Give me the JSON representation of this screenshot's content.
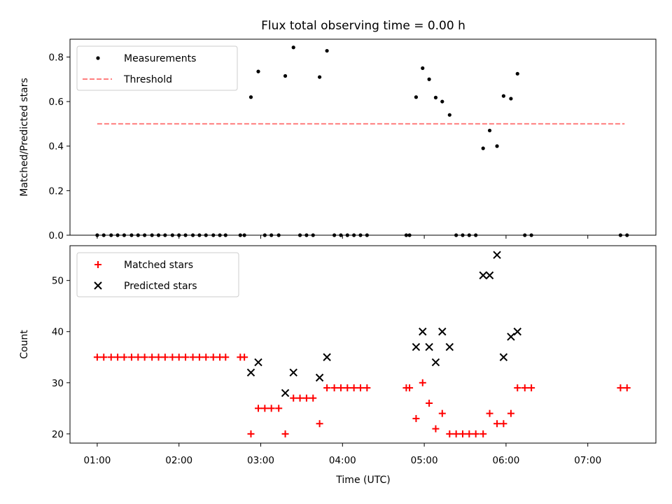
{
  "title": "Flux total observing time = 0.00 h",
  "x_axis": {
    "label": "Time (UTC)",
    "range_hours": [
      0.667,
      7.833
    ],
    "ticks": [
      {
        "v": 1,
        "label": "01:00"
      },
      {
        "v": 2,
        "label": "02:00"
      },
      {
        "v": 3,
        "label": "03:00"
      },
      {
        "v": 4,
        "label": "04:00"
      },
      {
        "v": 5,
        "label": "05:00"
      },
      {
        "v": 6,
        "label": "06:00"
      },
      {
        "v": 7,
        "label": "07:00"
      }
    ]
  },
  "chart_data": [
    {
      "type": "scatter",
      "ylabel": "Matched/Predicted stars",
      "ylim": [
        0,
        0.88
      ],
      "yticks": [
        {
          "v": 0,
          "label": "0.0"
        },
        {
          "v": 0.2,
          "label": "0.2"
        },
        {
          "v": 0.4,
          "label": "0.4"
        },
        {
          "v": 0.6,
          "label": "0.6"
        },
        {
          "v": 0.8,
          "label": "0.8"
        }
      ],
      "legend_position": "upper-left",
      "series": [
        {
          "name": "Measurements",
          "marker": "dot",
          "color": "#000000",
          "points": [
            [
              1.0,
              0
            ],
            [
              1.08,
              0
            ],
            [
              1.17,
              0
            ],
            [
              1.25,
              0
            ],
            [
              1.33,
              0
            ],
            [
              1.42,
              0
            ],
            [
              1.5,
              0
            ],
            [
              1.58,
              0
            ],
            [
              1.67,
              0
            ],
            [
              1.75,
              0
            ],
            [
              1.83,
              0
            ],
            [
              1.92,
              0
            ],
            [
              2.0,
              0
            ],
            [
              2.08,
              0
            ],
            [
              2.17,
              0
            ],
            [
              2.25,
              0
            ],
            [
              2.33,
              0
            ],
            [
              2.42,
              0
            ],
            [
              2.5,
              0
            ],
            [
              2.57,
              0
            ],
            [
              2.75,
              0
            ],
            [
              2.8,
              0
            ],
            [
              2.88,
              0.62
            ],
            [
              2.97,
              0.735
            ],
            [
              3.05,
              0
            ],
            [
              3.13,
              0
            ],
            [
              3.22,
              0
            ],
            [
              3.3,
              0.715
            ],
            [
              3.4,
              0.843
            ],
            [
              3.48,
              0
            ],
            [
              3.56,
              0
            ],
            [
              3.64,
              0
            ],
            [
              3.72,
              0.71
            ],
            [
              3.81,
              0.828
            ],
            [
              3.9,
              0
            ],
            [
              3.98,
              0
            ],
            [
              4.06,
              0
            ],
            [
              4.14,
              0
            ],
            [
              4.22,
              0
            ],
            [
              4.3,
              0
            ],
            [
              4.78,
              0
            ],
            [
              4.82,
              0
            ],
            [
              4.9,
              0.62
            ],
            [
              4.98,
              0.75
            ],
            [
              5.06,
              0.7
            ],
            [
              5.14,
              0.618
            ],
            [
              5.22,
              0.6
            ],
            [
              5.31,
              0.54
            ],
            [
              5.39,
              0
            ],
            [
              5.47,
              0
            ],
            [
              5.55,
              0
            ],
            [
              5.63,
              0
            ],
            [
              5.72,
              0.39
            ],
            [
              5.8,
              0.47
            ],
            [
              5.89,
              0.4
            ],
            [
              5.97,
              0.625
            ],
            [
              6.06,
              0.613
            ],
            [
              6.14,
              0.725
            ],
            [
              6.23,
              0
            ],
            [
              6.31,
              0
            ],
            [
              7.4,
              0
            ],
            [
              7.48,
              0
            ]
          ]
        },
        {
          "name": "Threshold",
          "type": "line",
          "style": "dashed",
          "color": "#ff7f7f",
          "x": [
            1.0,
            7.45
          ],
          "y": [
            0.5,
            0.5
          ]
        }
      ]
    },
    {
      "type": "scatter",
      "ylabel": "Count",
      "ylim": [
        18.2,
        56.8
      ],
      "yticks": [
        {
          "v": 20,
          "label": "20"
        },
        {
          "v": 30,
          "label": "30"
        },
        {
          "v": 40,
          "label": "40"
        },
        {
          "v": 50,
          "label": "50"
        }
      ],
      "legend_position": "upper-left",
      "series": [
        {
          "name": "Matched stars",
          "marker": "plus",
          "color": "#ff0000",
          "points": [
            [
              1.0,
              35
            ],
            [
              1.08,
              35
            ],
            [
              1.17,
              35
            ],
            [
              1.25,
              35
            ],
            [
              1.33,
              35
            ],
            [
              1.42,
              35
            ],
            [
              1.5,
              35
            ],
            [
              1.58,
              35
            ],
            [
              1.67,
              35
            ],
            [
              1.75,
              35
            ],
            [
              1.83,
              35
            ],
            [
              1.92,
              35
            ],
            [
              2.0,
              35
            ],
            [
              2.08,
              35
            ],
            [
              2.17,
              35
            ],
            [
              2.25,
              35
            ],
            [
              2.33,
              35
            ],
            [
              2.42,
              35
            ],
            [
              2.5,
              35
            ],
            [
              2.57,
              35
            ],
            [
              2.75,
              35
            ],
            [
              2.8,
              35
            ],
            [
              2.88,
              20
            ],
            [
              2.97,
              25
            ],
            [
              3.05,
              25
            ],
            [
              3.13,
              25
            ],
            [
              3.22,
              25
            ],
            [
              3.3,
              20
            ],
            [
              3.4,
              27
            ],
            [
              3.48,
              27
            ],
            [
              3.56,
              27
            ],
            [
              3.64,
              27
            ],
            [
              3.72,
              22
            ],
            [
              3.81,
              29
            ],
            [
              3.9,
              29
            ],
            [
              3.98,
              29
            ],
            [
              4.06,
              29
            ],
            [
              4.14,
              29
            ],
            [
              4.22,
              29
            ],
            [
              4.3,
              29
            ],
            [
              4.78,
              29
            ],
            [
              4.82,
              29
            ],
            [
              4.9,
              23
            ],
            [
              4.98,
              30
            ],
            [
              5.06,
              26
            ],
            [
              5.14,
              21
            ],
            [
              5.22,
              24
            ],
            [
              5.31,
              20
            ],
            [
              5.39,
              20
            ],
            [
              5.47,
              20
            ],
            [
              5.55,
              20
            ],
            [
              5.63,
              20
            ],
            [
              5.72,
              20
            ],
            [
              5.8,
              24
            ],
            [
              5.89,
              22
            ],
            [
              5.97,
              22
            ],
            [
              6.06,
              24
            ],
            [
              6.14,
              29
            ],
            [
              6.23,
              29
            ],
            [
              6.31,
              29
            ],
            [
              7.4,
              29
            ],
            [
              7.48,
              29
            ]
          ]
        },
        {
          "name": "Predicted stars",
          "marker": "x",
          "color": "#000000",
          "points": [
            [
              2.88,
              32
            ],
            [
              2.97,
              34
            ],
            [
              3.3,
              28
            ],
            [
              3.4,
              32
            ],
            [
              3.72,
              31
            ],
            [
              3.81,
              35
            ],
            [
              4.9,
              37
            ],
            [
              4.98,
              40
            ],
            [
              5.06,
              37
            ],
            [
              5.14,
              34
            ],
            [
              5.22,
              40
            ],
            [
              5.31,
              37
            ],
            [
              5.72,
              51
            ],
            [
              5.8,
              51
            ],
            [
              5.89,
              55
            ],
            [
              5.97,
              35
            ],
            [
              6.06,
              39
            ],
            [
              6.14,
              40
            ]
          ]
        }
      ]
    }
  ]
}
